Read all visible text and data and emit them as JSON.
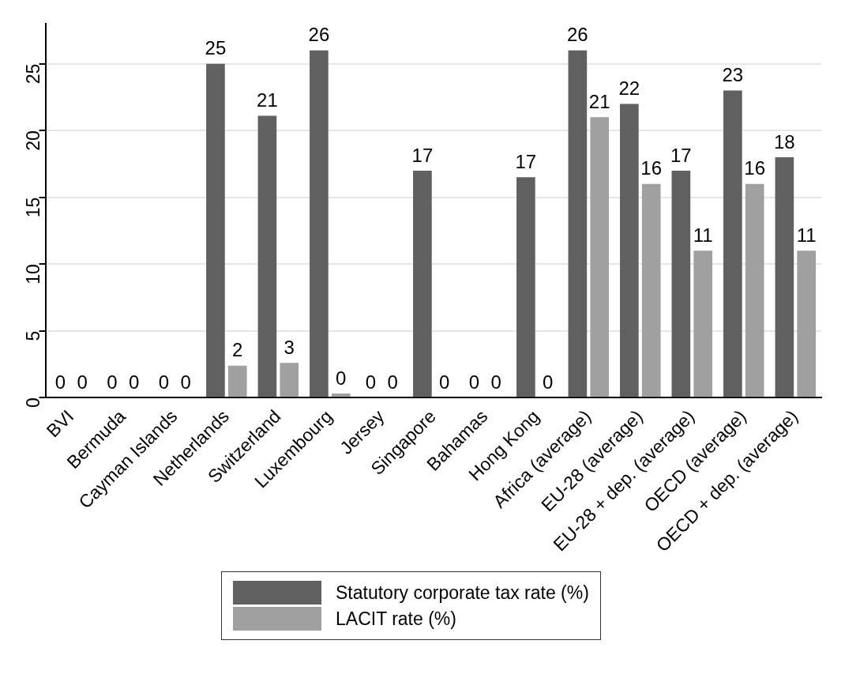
{
  "chart_data": {
    "type": "bar",
    "categories": [
      "BVI",
      "Bermuda",
      "Cayman Islands",
      "Netherlands",
      "Switzerland",
      "Luxembourg",
      "Jersey",
      "Singapore",
      "Bahamas",
      "Hong Kong",
      "Africa (average)",
      "EU-28 (average)",
      "EU-28 + dep. (average)",
      "OECD (average)",
      "OECD + dep. (average)"
    ],
    "series": [
      {
        "name": "Statutory corporate tax rate (%)",
        "color": "#606060",
        "values": [
          0,
          0,
          0,
          25,
          21.1,
          26,
          0,
          17,
          0,
          16.5,
          26,
          22,
          17,
          23,
          18
        ],
        "value_labels": [
          "0",
          "0",
          "0",
          "25",
          "21",
          "26",
          "0",
          "17",
          "0",
          "17",
          "26",
          "22",
          "17",
          "23",
          "18"
        ]
      },
      {
        "name": "LACIT rate (%)",
        "color": "#a0a0a0",
        "values": [
          0,
          0,
          0,
          2.4,
          2.6,
          0.3,
          0,
          0,
          0,
          0,
          21,
          16,
          11,
          16,
          11
        ],
        "value_labels": [
          "0",
          "0",
          "0",
          "2",
          "3",
          "0",
          "0",
          "0",
          "0",
          "0",
          "21",
          "16",
          "11",
          "16",
          "11"
        ]
      }
    ],
    "ylim": [
      0,
      28
    ],
    "yticks": [
      0,
      5,
      10,
      15,
      20,
      25
    ],
    "grid": "y",
    "legend": "bottom"
  }
}
